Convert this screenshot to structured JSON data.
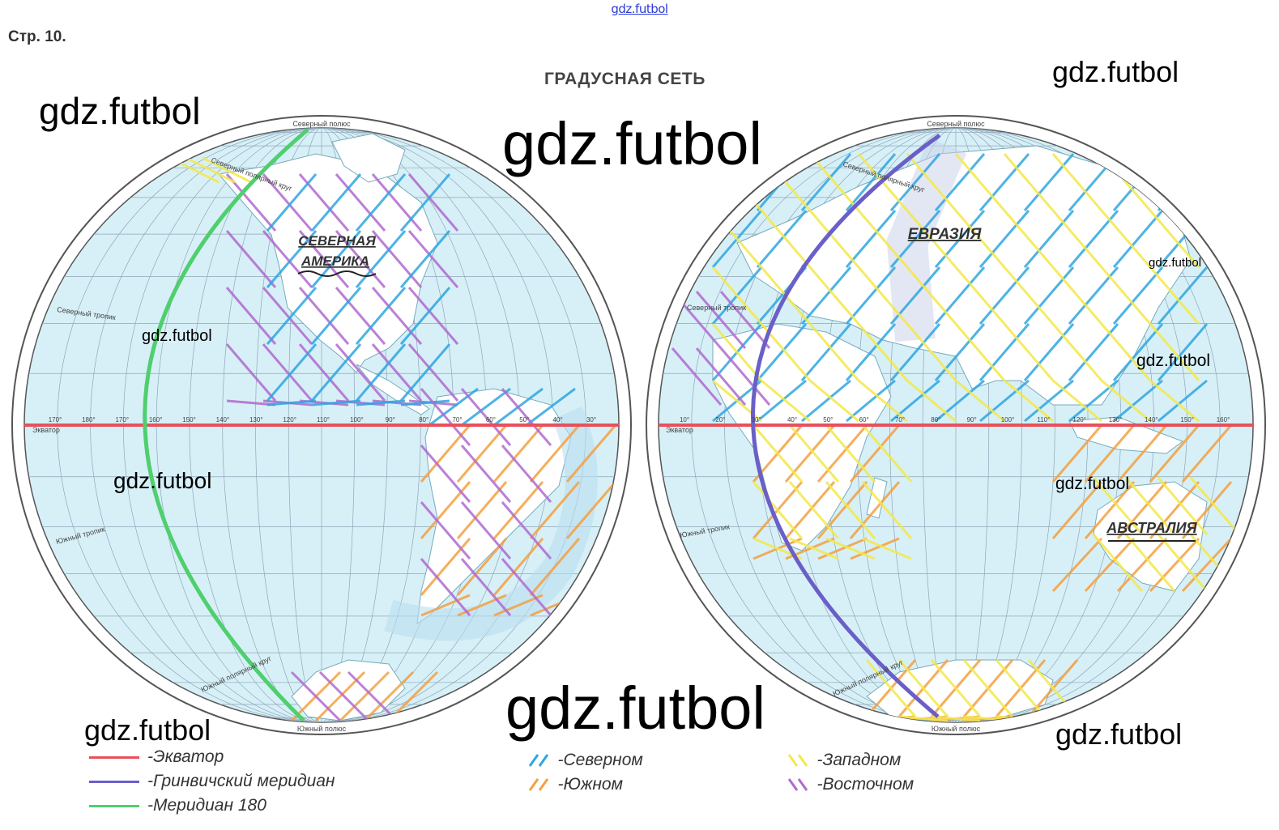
{
  "top_watermark": "gdz.futbol",
  "page_number": "Стр. 10.",
  "title": "ГРАДУСНАЯ СЕТЬ",
  "watermarks": [
    "gdz.futbol",
    "gdz.futbol",
    "gdz.futbol",
    "gdz.futbol",
    "gdz.futbol",
    "gdz.futbol",
    "gdz.futbol",
    "gdz.futbol",
    "gdz.futbol",
    "gdz.futbol",
    "gdz.futbol"
  ],
  "map_labels": {
    "north_pole": "Северный полюс",
    "south_pole": "Южный полюс",
    "arctic_circle": "Северный полярный круг",
    "antarctic_circle": "Южный полярный круг",
    "tropic_north": "Северный тропик",
    "tropic_south": "Южный тропик",
    "equator": "Экватор"
  },
  "continents": {
    "north_america_1": "СЕВЕРНАЯ",
    "north_america_2": "АМЕРИКА",
    "eurasia": "ЕВРАЗИЯ",
    "australia": "АВСТРАЛИЯ"
  },
  "west_meridian_ticks": [
    "170°",
    "180°",
    "170°",
    "160°",
    "150°",
    "140°",
    "130°",
    "120°",
    "110°",
    "100°",
    "90°",
    "80°",
    "70°",
    "60°",
    "50°",
    "40°",
    "30°"
  ],
  "east_meridian_ticks": [
    "10°",
    "20°",
    "30°",
    "40°",
    "50°",
    "60°",
    "70°",
    "80°",
    "90°",
    "100°",
    "110°",
    "120°",
    "130°",
    "140°",
    "150°",
    "160°"
  ],
  "legend_lines": [
    {
      "label": "-Экватор",
      "color": "#e8505b"
    },
    {
      "label": "-Гринвичский меридиан",
      "color": "#6a5fc8"
    },
    {
      "label": "-Меридиан 180",
      "color": "#4fcf6e"
    }
  ],
  "legend_hatch": [
    {
      "label": "-Северном",
      "color": "#2fa6e0"
    },
    {
      "label": "-Южном",
      "color": "#f4a040"
    },
    {
      "label": "-Западном",
      "color": "#f4e84a"
    },
    {
      "label": "-Восточном",
      "color": "#b06ad0"
    }
  ],
  "colors": {
    "ocean": "#d7f0f7",
    "land": "#ffffff",
    "grid": "#8fa6b8",
    "equator": "#e8505b",
    "greenwich": "#6a5fc8",
    "meridian180": "#4fcf6e"
  }
}
